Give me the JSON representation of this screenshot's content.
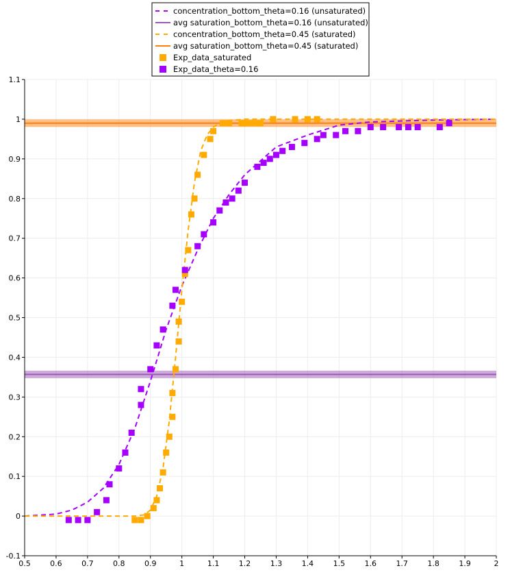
{
  "chart_data": {
    "type": "line",
    "title": "",
    "xlabel": "",
    "ylabel": "",
    "xlim": [
      0.5,
      2.0
    ],
    "ylim": [
      -0.1,
      1.1
    ],
    "grid": true,
    "legend_placement": "top-center",
    "xticks": [
      "0.5",
      "0.6",
      "0.7",
      "0.8",
      "0.9",
      "1",
      "1.1",
      "1.2",
      "1.3",
      "1.4",
      "1.5",
      "1.6",
      "1.7",
      "1.8",
      "1.9",
      "2"
    ],
    "xtick_values": [
      0.5,
      0.6,
      0.7,
      0.8,
      0.9,
      1.0,
      1.1,
      1.2,
      1.3,
      1.4,
      1.5,
      1.6,
      1.7,
      1.8,
      1.9,
      2.0
    ],
    "yticks": [
      "-0.1",
      "0",
      "0.1",
      "0.2",
      "0.3",
      "0.4",
      "0.5",
      "0.6",
      "0.7",
      "0.8",
      "0.9",
      "1",
      "1.1"
    ],
    "ytick_values": [
      -0.1,
      0,
      0.1,
      0.2,
      0.3,
      0.4,
      0.5,
      0.6,
      0.7,
      0.8,
      0.9,
      1.0,
      1.1
    ],
    "series": [
      {
        "name": "concentration_bottom_theta=0.16 (unsaturated)",
        "kind": "dashed-line",
        "color": "#a500ff",
        "x": [
          0.5,
          0.6,
          0.65,
          0.7,
          0.75,
          0.8,
          0.85,
          0.9,
          0.95,
          1.0,
          1.05,
          1.1,
          1.15,
          1.2,
          1.3,
          1.4,
          1.5,
          1.6,
          1.8,
          2.0
        ],
        "y": [
          0,
          0.005,
          0.015,
          0.035,
          0.07,
          0.13,
          0.22,
          0.34,
          0.47,
          0.58,
          0.67,
          0.75,
          0.81,
          0.86,
          0.93,
          0.96,
          0.985,
          0.993,
          0.998,
          1.0
        ]
      },
      {
        "name": "avg saturation_bottom_theta=0.16 (unsaturated)",
        "kind": "hline",
        "color": "#9b59b6",
        "y": 0.357
      },
      {
        "name": "concentration_bottom_theta=0.45 (saturated)",
        "kind": "dashed-line",
        "color": "#ffaa00",
        "x": [
          0.5,
          0.85,
          0.88,
          0.9,
          0.92,
          0.94,
          0.96,
          0.98,
          1.0,
          1.02,
          1.04,
          1.06,
          1.08,
          1.1,
          1.13,
          1.2,
          2.0
        ],
        "y": [
          0,
          0,
          0.003,
          0.015,
          0.05,
          0.12,
          0.24,
          0.4,
          0.57,
          0.72,
          0.84,
          0.92,
          0.96,
          0.98,
          0.995,
          1.0,
          1.0
        ]
      },
      {
        "name": "avg saturation_bottom_theta=0.45 (saturated)",
        "kind": "hline",
        "color": "#ff7f0e",
        "y": 0.99
      },
      {
        "name": "Exp_data_saturated",
        "kind": "scatter",
        "color": "#ffaa00",
        "x": [
          0.85,
          0.87,
          0.89,
          0.91,
          0.92,
          0.93,
          0.94,
          0.95,
          0.96,
          0.97,
          0.97,
          0.98,
          0.99,
          0.99,
          1.0,
          1.01,
          1.02,
          1.03,
          1.04,
          1.05,
          1.07,
          1.09,
          1.1,
          1.13,
          1.15,
          1.19,
          1.2,
          1.22,
          1.24,
          1.25,
          1.29,
          1.36,
          1.4,
          1.43
        ],
        "y": [
          -0.01,
          -0.01,
          0,
          0.02,
          0.04,
          0.07,
          0.11,
          0.16,
          0.2,
          0.25,
          0.31,
          0.37,
          0.44,
          0.49,
          0.54,
          0.61,
          0.67,
          0.76,
          0.8,
          0.86,
          0.91,
          0.95,
          0.97,
          0.99,
          0.99,
          0.99,
          0.99,
          0.99,
          0.99,
          0.99,
          1.0,
          1.0,
          1.0,
          1.0
        ]
      },
      {
        "name": "Exp_data_theta=0.16",
        "kind": "scatter",
        "color": "#a500ff",
        "x": [
          0.64,
          0.67,
          0.7,
          0.73,
          0.76,
          0.77,
          0.8,
          0.82,
          0.84,
          0.87,
          0.87,
          0.9,
          0.92,
          0.94,
          0.97,
          0.98,
          1.01,
          1.05,
          1.07,
          1.1,
          1.12,
          1.14,
          1.16,
          1.18,
          1.2,
          1.24,
          1.26,
          1.28,
          1.3,
          1.32,
          1.35,
          1.39,
          1.43,
          1.45,
          1.49,
          1.52,
          1.56,
          1.6,
          1.64,
          1.69,
          1.72,
          1.75,
          1.82,
          1.85
        ],
        "y": [
          -0.01,
          -0.01,
          -0.01,
          0.01,
          0.04,
          0.08,
          0.12,
          0.16,
          0.21,
          0.28,
          0.32,
          0.37,
          0.43,
          0.47,
          0.53,
          0.57,
          0.62,
          0.68,
          0.71,
          0.74,
          0.77,
          0.79,
          0.8,
          0.82,
          0.84,
          0.88,
          0.89,
          0.9,
          0.91,
          0.92,
          0.93,
          0.94,
          0.95,
          0.96,
          0.96,
          0.97,
          0.97,
          0.98,
          0.98,
          0.98,
          0.98,
          0.98,
          0.98,
          0.99
        ]
      }
    ]
  }
}
